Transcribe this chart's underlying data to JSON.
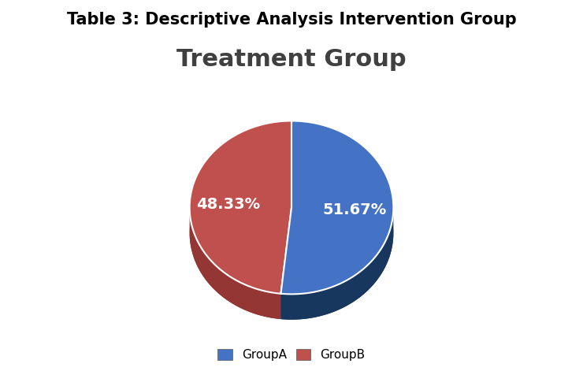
{
  "super_title": "Table 3: Descriptive Analysis Intervention Group",
  "chart_title": "Treatment Group",
  "labels": [
    "GroupA",
    "GroupB"
  ],
  "values": [
    51.67,
    48.33
  ],
  "colors_top": [
    "#4472C4",
    "#C0504D"
  ],
  "colors_side": [
    "#17375E",
    "#943634"
  ],
  "autopct_labels": [
    "51.67%",
    "48.33%"
  ],
  "background_color": "#E8E8E8",
  "outer_background": "#FFFFFF",
  "chart_title_fontsize": 22,
  "super_title_fontsize": 15,
  "label_fontsize": 14,
  "legend_fontsize": 11
}
